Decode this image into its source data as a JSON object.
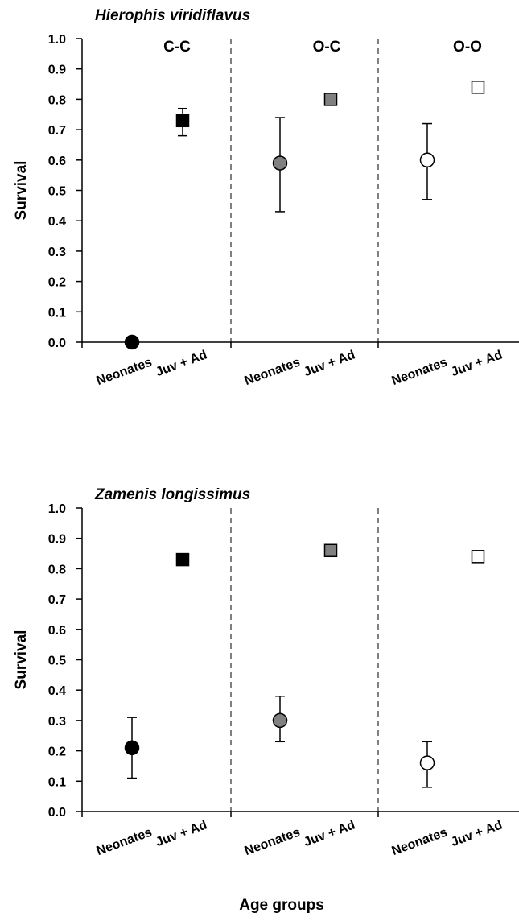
{
  "chart_data": [
    {
      "type": "scatter",
      "title": "Hierophis viridiflavus",
      "ylabel": "Survival",
      "xlabel": "",
      "ylim": [
        0.0,
        1.0
      ],
      "yticks": [
        "0.0",
        "0.1",
        "0.2",
        "0.3",
        "0.4",
        "0.5",
        "0.6",
        "0.7",
        "0.8",
        "0.9",
        "1.0"
      ],
      "groups": [
        "C-C",
        "O-C",
        "O-O"
      ],
      "categories": [
        "Neonates",
        "Juv + Ad"
      ],
      "fill_colors": {
        "C-C": "#000000",
        "O-C": "#808080",
        "O-O": "#ffffff"
      },
      "points": [
        {
          "group": "C-C",
          "category": "Neonates",
          "marker": "circle",
          "value": 0.0,
          "lower": null,
          "upper": null
        },
        {
          "group": "C-C",
          "category": "Juv + Ad",
          "marker": "square",
          "value": 0.73,
          "lower": 0.68,
          "upper": 0.77
        },
        {
          "group": "O-C",
          "category": "Neonates",
          "marker": "circle",
          "value": 0.59,
          "lower": 0.43,
          "upper": 0.74
        },
        {
          "group": "O-C",
          "category": "Juv + Ad",
          "marker": "square",
          "value": 0.8,
          "lower": null,
          "upper": null
        },
        {
          "group": "O-O",
          "category": "Neonates",
          "marker": "circle",
          "value": 0.6,
          "lower": 0.47,
          "upper": 0.72
        },
        {
          "group": "O-O",
          "category": "Juv + Ad",
          "marker": "square",
          "value": 0.84,
          "lower": null,
          "upper": null
        }
      ],
      "group_labels_shown": true,
      "legend": "none",
      "grid": false
    },
    {
      "type": "scatter",
      "title": "Zamenis longissimus",
      "ylabel": "Survival",
      "xlabel": "Age groups",
      "ylim": [
        0.0,
        1.0
      ],
      "yticks": [
        "0.0",
        "0.1",
        "0.2",
        "0.3",
        "0.4",
        "0.5",
        "0.6",
        "0.7",
        "0.8",
        "0.9",
        "1.0"
      ],
      "groups": [
        "C-C",
        "O-C",
        "O-O"
      ],
      "categories": [
        "Neonates",
        "Juv + Ad"
      ],
      "fill_colors": {
        "C-C": "#000000",
        "O-C": "#808080",
        "O-O": "#ffffff"
      },
      "points": [
        {
          "group": "C-C",
          "category": "Neonates",
          "marker": "circle",
          "value": 0.21,
          "lower": 0.11,
          "upper": 0.31
        },
        {
          "group": "C-C",
          "category": "Juv + Ad",
          "marker": "square",
          "value": 0.83,
          "lower": null,
          "upper": null
        },
        {
          "group": "O-C",
          "category": "Neonates",
          "marker": "circle",
          "value": 0.3,
          "lower": 0.23,
          "upper": 0.38
        },
        {
          "group": "O-C",
          "category": "Juv + Ad",
          "marker": "square",
          "value": 0.86,
          "lower": null,
          "upper": null
        },
        {
          "group": "O-O",
          "category": "Neonates",
          "marker": "circle",
          "value": 0.16,
          "lower": 0.08,
          "upper": 0.23
        },
        {
          "group": "O-O",
          "category": "Juv + Ad",
          "marker": "square",
          "value": 0.84,
          "lower": null,
          "upper": null
        }
      ],
      "group_labels_shown": false,
      "legend": "none",
      "grid": false
    }
  ]
}
